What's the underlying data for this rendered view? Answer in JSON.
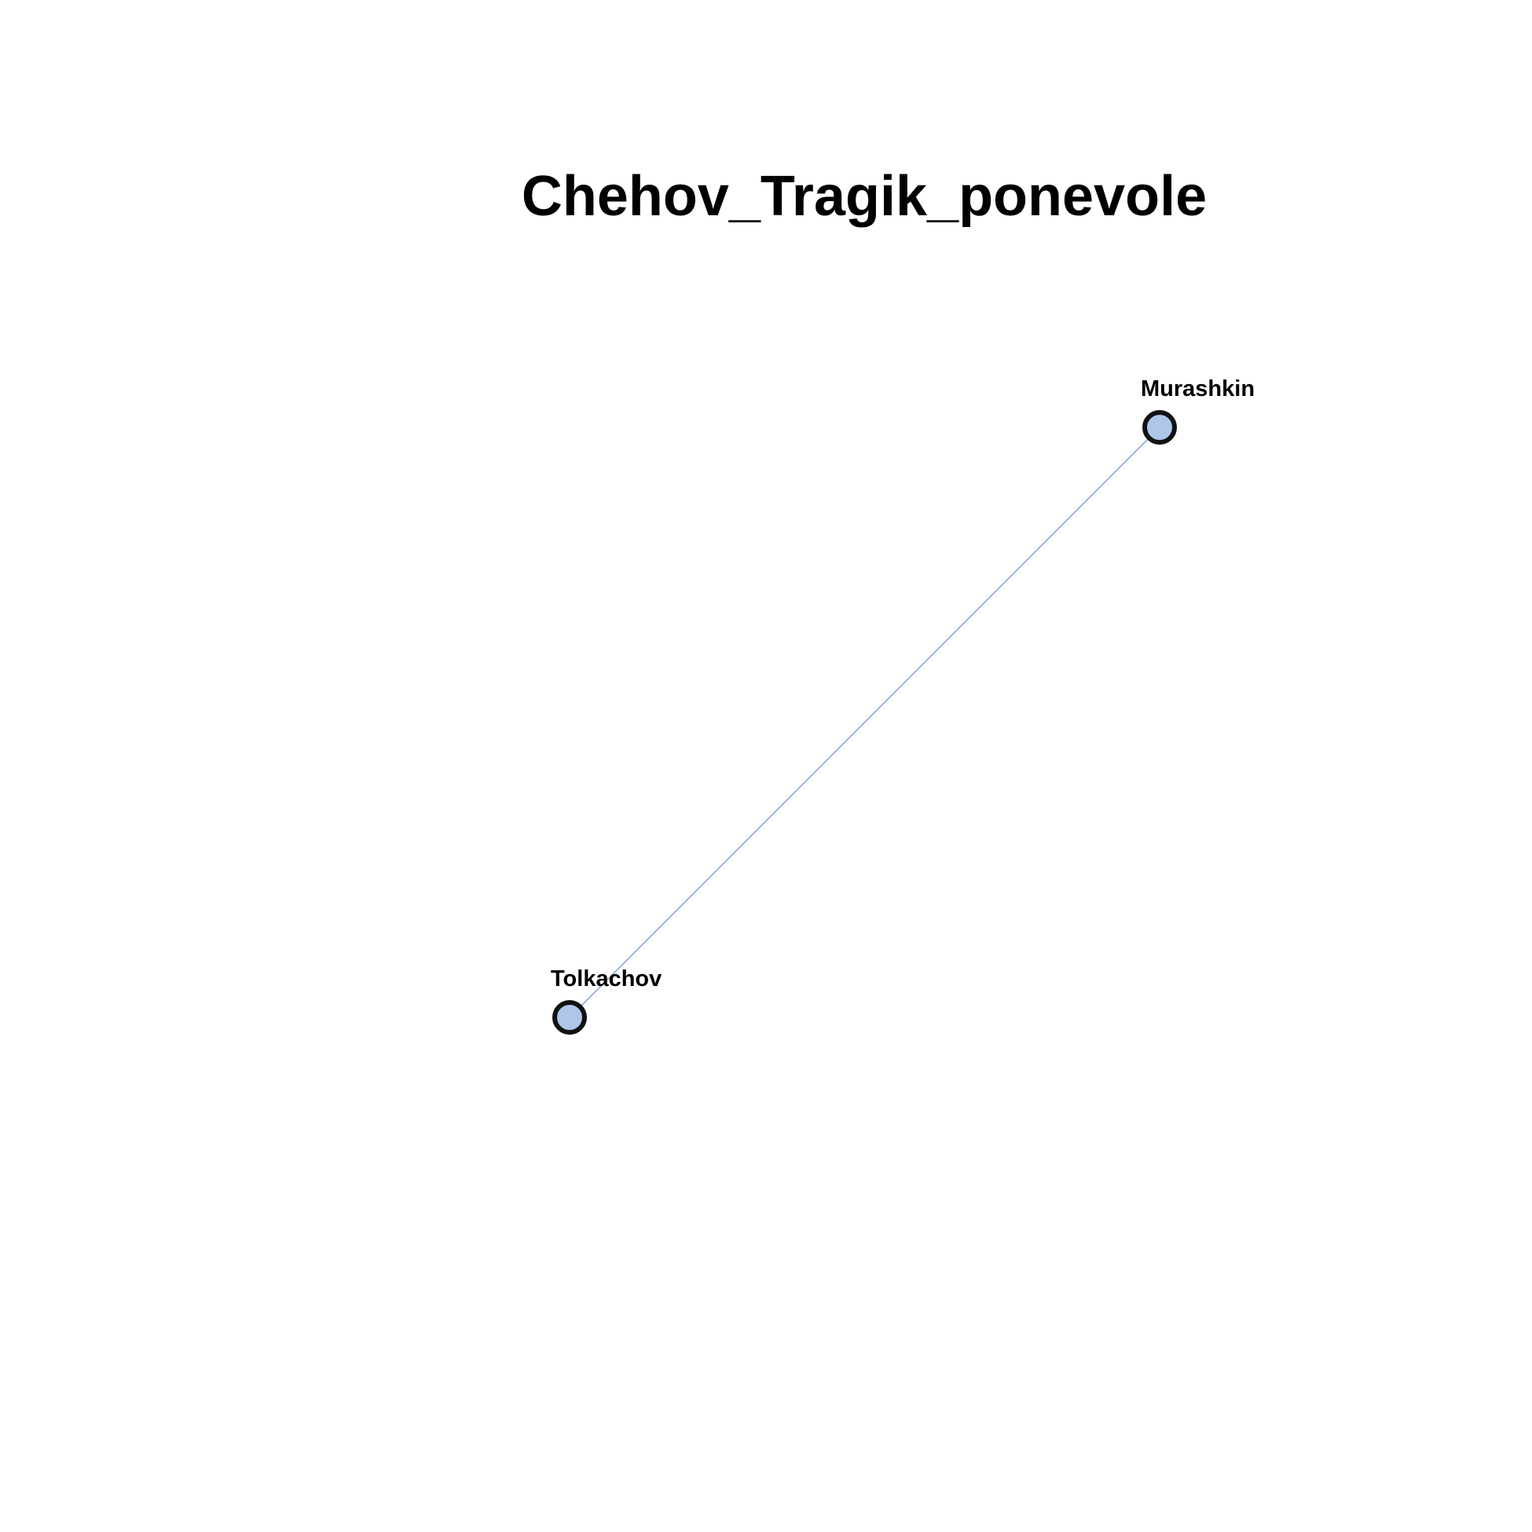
{
  "title": "Chehov_Tragik_ponevole",
  "colors": {
    "node_fill": "#aec7e8",
    "node_stroke": "#111111",
    "edge": "#9bb5dd",
    "text": "#000000",
    "background": "#ffffff"
  },
  "nodes": [
    {
      "id": "murashkin",
      "label": "Murashkin"
    },
    {
      "id": "tolkachov",
      "label": "Tolkachov"
    }
  ],
  "edges": [
    {
      "source": "murashkin",
      "target": "tolkachov"
    }
  ]
}
